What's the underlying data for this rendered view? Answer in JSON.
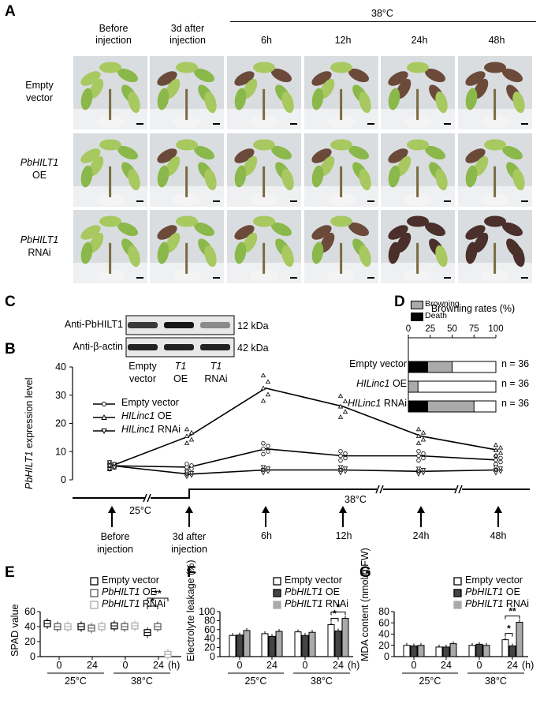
{
  "panels": [
    "A",
    "B",
    "C",
    "D",
    "E",
    "F",
    "G"
  ],
  "panelA": {
    "col_headers": [
      "Before\ninjection",
      "3d after\ninjection",
      "6h",
      "12h",
      "24h",
      "48h"
    ],
    "temp_header": "38°C",
    "rows": [
      {
        "gene": "",
        "label": "Empty\nvector",
        "severity": [
          0,
          0.05,
          0.18,
          0.2,
          0.45,
          0.6
        ]
      },
      {
        "gene": "PbHILT1",
        "label": "OE",
        "severity": [
          0,
          0.02,
          0.05,
          0.08,
          0.1,
          0.12
        ]
      },
      {
        "gene": "PbHILT1",
        "label": "RNAi",
        "severity": [
          0,
          0.05,
          0.1,
          0.35,
          0.75,
          0.9
        ]
      }
    ]
  },
  "panelC": {
    "rows": [
      {
        "label": "Anti-PbHILT1",
        "kda": "12 kDa",
        "bands": [
          0.75,
          0.9,
          0.4
        ]
      },
      {
        "label": "Anti-β-actin",
        "kda": "42 kDa",
        "bands": [
          0.85,
          0.85,
          0.85
        ]
      }
    ],
    "lanes": [
      {
        "italic": "",
        "text": "Empty\nvector"
      },
      {
        "italic": "T1",
        "text": "OE"
      },
      {
        "italic": "T1",
        "text": "RNAi"
      }
    ]
  },
  "panelD": {
    "legend": [
      "Browning",
      "Death"
    ],
    "axis_title": "Browning rates (%)",
    "colors": {
      "browning": "#aaaaaa",
      "death": "#000000"
    }
  },
  "panelB": {
    "ylabel_italic": "PbHILT1",
    "ylabel_rest": " expression level",
    "timeline": {
      "t25": "25°C",
      "t38": "38°C",
      "arrows": [
        "Before\ninjection",
        "3d after\ninjection",
        "6h",
        "12h",
        "24h",
        "48h"
      ]
    }
  },
  "bottom_axes": {
    "x_ticks": [
      "0",
      "24",
      "0",
      "24"
    ],
    "temps": [
      "25°C",
      "38°C"
    ],
    "unit": "(h)"
  },
  "panelE": {
    "ylabel": "SPAD value",
    "legend": [
      {
        "it": "",
        "txt": "Empty vector"
      },
      {
        "it": "PbHILT1",
        "txt": " OE"
      },
      {
        "it": "PbHILT1",
        "txt": " RNAi"
      }
    ]
  },
  "panelF": {
    "ylabel": "Electrolyte leakage (%)",
    "legend": [
      {
        "it": "",
        "txt": "Empty vector"
      },
      {
        "it": "PbHILT1",
        "txt": " OE"
      },
      {
        "it": "PbHILT1",
        "txt": " RNAi"
      }
    ]
  },
  "panelG": {
    "ylabel": "MDA content (nmol/g FW)",
    "legend": [
      {
        "it": "",
        "txt": "Empty vector"
      },
      {
        "it": "PbHILT1",
        "txt": " OE"
      },
      {
        "it": "PbHILT1",
        "txt": " RNAi"
      }
    ]
  },
  "chart_data": [
    {
      "id": "B",
      "type": "line",
      "x": [
        "Before injection",
        "3d after injection",
        "6h",
        "12h",
        "24h",
        "48h"
      ],
      "ylabel": "PbHILT1 expression level",
      "ylim": [
        0,
        40
      ],
      "yticks": [
        0,
        10,
        20,
        30,
        40
      ],
      "series": [
        {
          "name": "Empty vector",
          "marker": "circle",
          "values": [
            5,
            4.5,
            11,
            8.5,
            8.5,
            7
          ]
        },
        {
          "name": "HILinc1 OE",
          "marker": "triangle-up",
          "values": [
            5,
            15.5,
            32.5,
            26,
            15.5,
            10.5
          ]
        },
        {
          "name": "HILinc1 RNAi",
          "marker": "triangle-down",
          "values": [
            5,
            2,
            3.5,
            3.5,
            3,
            3.5
          ]
        }
      ]
    },
    {
      "id": "D",
      "type": "bar",
      "orientation": "horizontal",
      "stacked": true,
      "categories": [
        "Empty vector",
        "HILinc1 OE",
        "HILinc1 RNAi"
      ],
      "n_labels": [
        "n = 36",
        "n = 36",
        "n = 36"
      ],
      "xlim": [
        0,
        100
      ],
      "xticks": [
        0,
        25,
        50,
        75,
        100
      ],
      "series": [
        {
          "name": "Death",
          "values": [
            22,
            0,
            22
          ]
        },
        {
          "name": "Browning",
          "values": [
            28,
            11,
            53
          ]
        }
      ]
    },
    {
      "id": "E",
      "type": "box",
      "ylabel": "SPAD value",
      "ylim": [
        0,
        60
      ],
      "yticks": [
        0,
        20,
        40,
        60
      ],
      "groups": [
        "0",
        "24",
        "0",
        "24"
      ],
      "series": [
        {
          "name": "Empty vector",
          "medians": [
            44,
            40,
            41,
            32
          ]
        },
        {
          "name": "PbHILT1 OE",
          "medians": [
            40,
            38,
            40,
            40
          ]
        },
        {
          "name": "PbHILT1 RNAi",
          "medians": [
            40,
            40,
            41,
            3
          ]
        }
      ],
      "significance": [
        "*",
        "**"
      ]
    },
    {
      "id": "F",
      "type": "bar",
      "ylabel": "Electrolyte leakage (%)",
      "ylim": [
        0,
        100
      ],
      "yticks": [
        0,
        20,
        40,
        60,
        80,
        100
      ],
      "groups": [
        "0",
        "24",
        "0",
        "24"
      ],
      "series": [
        {
          "name": "Empty vector",
          "values": [
            47,
            51,
            55,
            71
          ]
        },
        {
          "name": "PbHILT1 OE",
          "values": [
            48,
            45,
            47,
            57
          ]
        },
        {
          "name": "PbHILT1 RNAi",
          "values": [
            58,
            56,
            54,
            85
          ]
        }
      ],
      "significance": [
        "*",
        "*"
      ]
    },
    {
      "id": "G",
      "type": "bar",
      "ylabel": "MDA content (nmol/g FW)",
      "ylim": [
        0,
        80
      ],
      "yticks": [
        0,
        20,
        40,
        60,
        80
      ],
      "groups": [
        "0",
        "24",
        "0",
        "24"
      ],
      "series": [
        {
          "name": "Empty vector",
          "values": [
            20,
            17,
            20,
            30
          ]
        },
        {
          "name": "PbHILT1 OE",
          "values": [
            19,
            17,
            22,
            19
          ]
        },
        {
          "name": "PbHILT1 RNAi",
          "values": [
            20,
            23,
            20,
            61
          ]
        }
      ],
      "significance": [
        "*",
        "**"
      ]
    }
  ]
}
